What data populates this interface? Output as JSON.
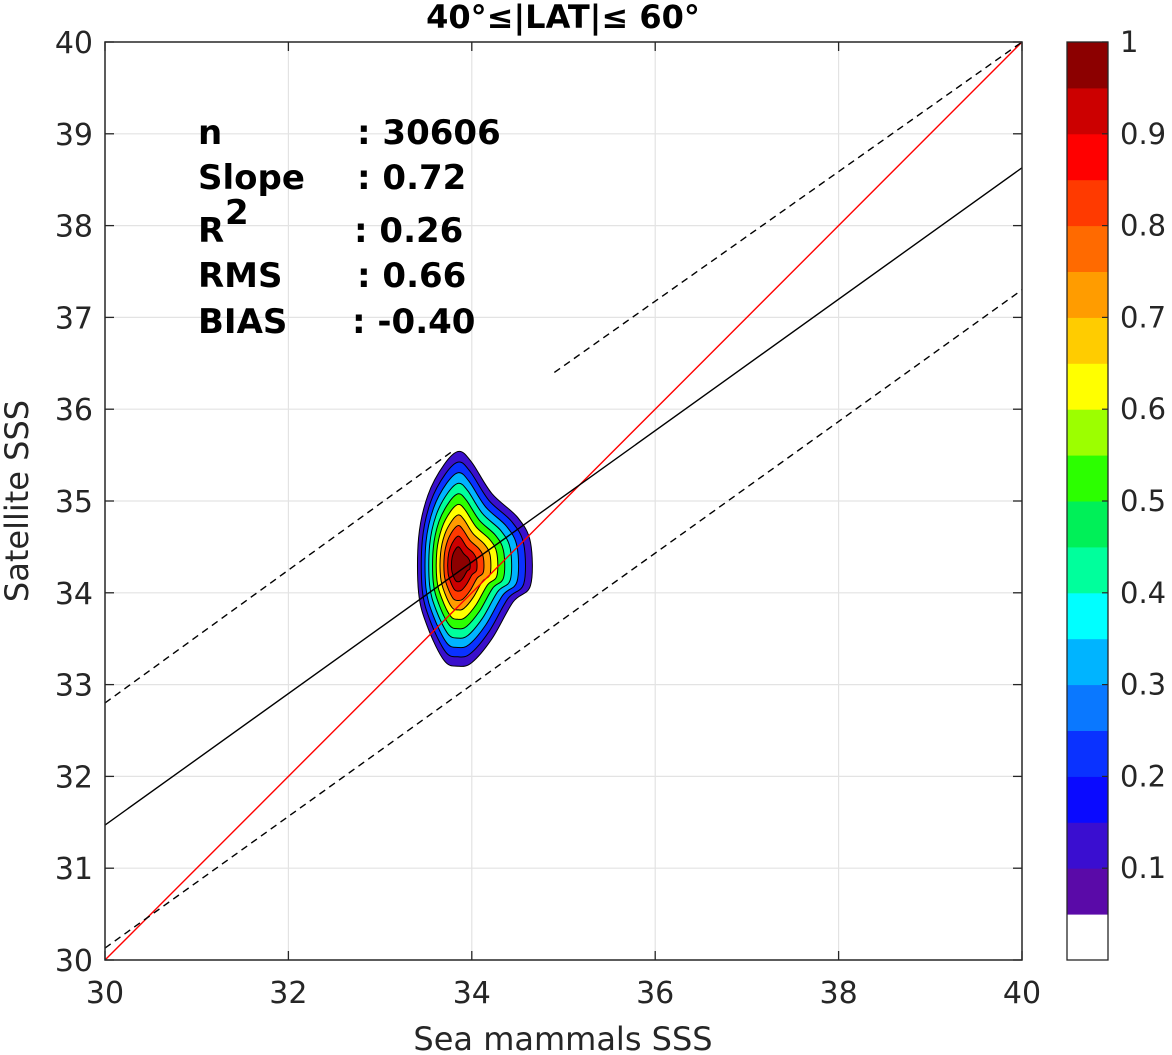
{
  "chart_data": {
    "type": "heatmap",
    "subtype": "density-contour",
    "title": "40°≤|LAT|≤ 60°",
    "xlabel": "Sea mammals SSS",
    "ylabel": "Satellite SSS",
    "xlim": [
      30,
      40
    ],
    "ylim": [
      30,
      40
    ],
    "xticks": [
      "30",
      "32",
      "34",
      "36",
      "38",
      "40"
    ],
    "yticks": [
      "30",
      "31",
      "32",
      "33",
      "34",
      "35",
      "36",
      "37",
      "38",
      "39",
      "40"
    ],
    "grid": true,
    "stats": [
      {
        "key": "n",
        "value": ": 30606"
      },
      {
        "key": "Slope",
        "value": ": 0.72"
      },
      {
        "key": "R",
        "sup": "2",
        "value": ": 0.26"
      },
      {
        "key": "RMS",
        "value": ": 0.66"
      },
      {
        "key": "BIAS",
        "value": ": -0.40"
      }
    ],
    "lines": [
      {
        "name": "identity",
        "color": "#ff0000",
        "dash": false,
        "x": [
          30,
          40
        ],
        "y": [
          30,
          40
        ]
      },
      {
        "name": "regression",
        "color": "#000000",
        "dash": false,
        "x": [
          30,
          40
        ],
        "y": [
          31.47,
          38.63
        ]
      },
      {
        "name": "upper bound",
        "color": "#000000",
        "dash": true,
        "x": [
          30,
          33.8
        ],
        "y": [
          32.8,
          35.55
        ]
      },
      {
        "name": "upper bound (cont.)",
        "color": "#000000",
        "dash": true,
        "x": [
          34.9,
          40
        ],
        "y": [
          36.4,
          40
        ]
      },
      {
        "name": "lower bound",
        "color": "#000000",
        "dash": true,
        "x": [
          30,
          40
        ],
        "y": [
          30.13,
          37.3
        ]
      }
    ],
    "density_center": {
      "x": 33.85,
      "y": 34.3
    },
    "contour_levels": [
      0.05,
      0.15,
      0.25,
      0.35,
      0.45,
      0.55,
      0.65,
      0.75,
      0.85,
      0.95
    ],
    "colorbar": {
      "ticks": [
        "0.1",
        "0.2",
        "0.3",
        "0.4",
        "0.5",
        "0.6",
        "0.7",
        "0.8",
        "0.9",
        "1"
      ],
      "tick_values": [
        0.1,
        0.2,
        0.3,
        0.4,
        0.5,
        0.6,
        0.7,
        0.8,
        0.9,
        1.0
      ],
      "colors": [
        "#ffffff",
        "#5a0aa8",
        "#3a0ed0",
        "#0a0aff",
        "#0a32ff",
        "#0a78ff",
        "#00b4ff",
        "#00ffff",
        "#00ff9c",
        "#00f058",
        "#2cff00",
        "#9cff00",
        "#ffff00",
        "#ffcc00",
        "#ff9c00",
        "#ff6a00",
        "#ff3a00",
        "#ff0000",
        "#cc0000",
        "#8c0000"
      ]
    }
  }
}
